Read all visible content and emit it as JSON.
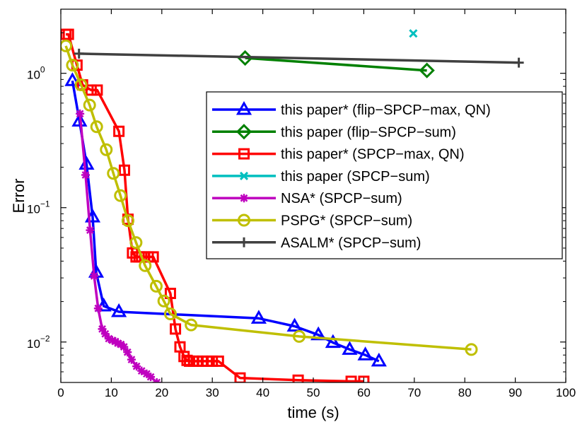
{
  "chart_data": {
    "type": "line",
    "title": "",
    "xlabel": "time (s)",
    "ylabel": "Error",
    "xlim": [
      0,
      100
    ],
    "ylim": [
      0.005,
      3
    ],
    "yscale": "log",
    "x_ticks": [
      0,
      10,
      20,
      30,
      40,
      50,
      60,
      70,
      80,
      90,
      100
    ],
    "x_tick_labels": [
      "0",
      "10",
      "20",
      "30",
      "40",
      "50",
      "60",
      "70",
      "80",
      "90",
      "100"
    ],
    "y_ticks": [
      {
        "value": 1,
        "base": "10",
        "exp": "0"
      },
      {
        "value": 0.1,
        "base": "10",
        "exp": "−1"
      },
      {
        "value": 0.01,
        "base": "10",
        "exp": "−2"
      }
    ],
    "grid": false,
    "legend_position": "top-right",
    "series": [
      {
        "name": "this paper* (flip−SPCP−max, QN)",
        "color": "#0000ff",
        "marker": "triangle",
        "x": [
          2.3,
          3.7,
          5.1,
          6.3,
          7.0,
          8.5,
          11.5,
          39.2,
          46.3,
          51.0,
          53.9,
          57.2,
          60.3,
          63.0
        ],
        "y": [
          0.88,
          0.44,
          0.21,
          0.085,
          0.033,
          0.0185,
          0.0168,
          0.015,
          0.0131,
          0.0113,
          0.0099,
          0.0088,
          0.008,
          0.0072
        ]
      },
      {
        "name": "this paper (flip−SPCP−sum)",
        "color": "#008000",
        "marker": "diamond",
        "x": [
          36.5,
          72.5
        ],
        "y": [
          1.3,
          1.05
        ]
      },
      {
        "name": "this paper* (SPCP−max, QN)",
        "color": "#ff0000",
        "marker": "square",
        "x": [
          1.0,
          1.5,
          3.2,
          4.3,
          6.0,
          7.2,
          11.5,
          12.6,
          13.3,
          14.2,
          14.9,
          15.5,
          16.0,
          16.6,
          17.3,
          18.3,
          21.7,
          22.7,
          23.6,
          24.4,
          25.0,
          25.5,
          26.3,
          27.0,
          28.0,
          29.0,
          30.0,
          31.2,
          35.5,
          47.0,
          57.5,
          60.0
        ],
        "y": [
          1.95,
          1.95,
          1.15,
          0.82,
          0.75,
          0.75,
          0.37,
          0.19,
          0.082,
          0.046,
          0.043,
          0.043,
          0.043,
          0.043,
          0.043,
          0.043,
          0.023,
          0.0125,
          0.0092,
          0.0078,
          0.0073,
          0.0072,
          0.0072,
          0.0072,
          0.0072,
          0.0072,
          0.0072,
          0.0072,
          0.0054,
          0.0052,
          0.0051,
          0.0051
        ]
      },
      {
        "name": "this paper (SPCP−sum)",
        "color": "#00bfbf",
        "marker": "x",
        "x": [
          69.8
        ],
        "y": [
          1.98
        ]
      },
      {
        "name": "NSA* (SPCP−sum)",
        "color": "#bf00bf",
        "marker": "asterisk",
        "x": [
          3.8,
          4.9,
          5.8,
          6.6,
          7.4,
          8.2,
          8.8,
          9.5,
          10.2,
          10.8,
          11.3,
          11.9,
          12.5,
          13.2,
          14.0,
          15.0,
          16.0,
          17.0,
          17.8,
          19.0
        ],
        "y": [
          0.5,
          0.175,
          0.068,
          0.031,
          0.0178,
          0.0125,
          0.0115,
          0.0106,
          0.0103,
          0.0101,
          0.0098,
          0.0096,
          0.0092,
          0.0084,
          0.0074,
          0.0066,
          0.0061,
          0.0058,
          0.0055,
          0.005
        ]
      },
      {
        "name": "PSPG* (SPCP−sum)",
        "color": "#bfbf00",
        "marker": "circle",
        "x": [
          1.0,
          2.3,
          4.0,
          5.7,
          7.1,
          9.0,
          10.4,
          11.8,
          13.3,
          14.9,
          16.7,
          18.9,
          20.4,
          21.7,
          25.8,
          47.2,
          81.3
        ],
        "y": [
          1.6,
          1.15,
          0.82,
          0.58,
          0.4,
          0.27,
          0.18,
          0.123,
          0.08,
          0.055,
          0.037,
          0.026,
          0.0202,
          0.0162,
          0.0134,
          0.011,
          0.0088
        ]
      },
      {
        "name": "ASALM* (SPCP−sum)",
        "color": "#404040",
        "marker": "plus",
        "x": [
          3.6,
          90.7
        ],
        "y": [
          1.4,
          1.2
        ]
      }
    ]
  }
}
